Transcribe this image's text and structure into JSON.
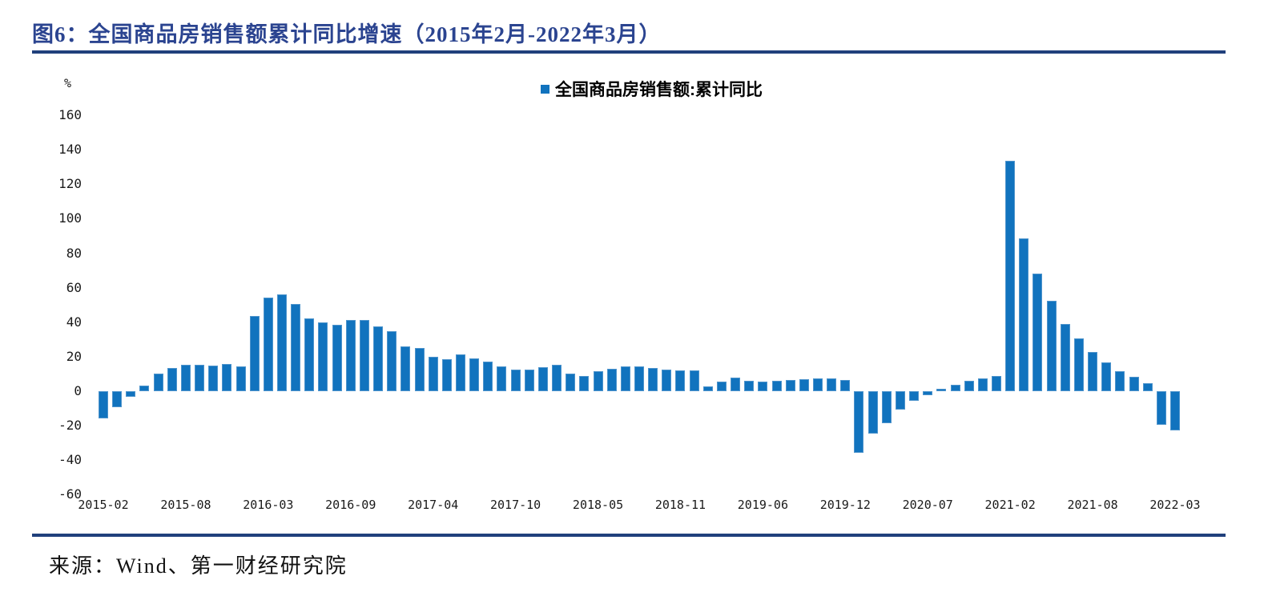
{
  "title": "图6：全国商品房销售额累计同比增速（2015年2月-2022年3月）",
  "source": "来源：Wind、第一财经研究院",
  "colors": {
    "bar": "#1173BE",
    "title": "#2B4490",
    "rule": "#20407C",
    "tick": "#1a1a1a",
    "text": "#111111"
  },
  "chart_data": {
    "type": "bar",
    "title": "图6：全国商品房销售额累计同比增速（2015年2月-2022年3月）",
    "legend": "全国商品房销售额:累计同比",
    "legend_position": "top-center",
    "ylabel": "%",
    "ylim": [
      -60,
      160
    ],
    "ytick_step": 20,
    "y_ticks": [
      160,
      140,
      120,
      100,
      80,
      60,
      40,
      20,
      0,
      -20,
      -40,
      -60
    ],
    "grid": false,
    "x": [
      "2015-02",
      "2015-03",
      "2015-04",
      "2015-05",
      "2015-06",
      "2015-07",
      "2015-08",
      "2015-09",
      "2015-10",
      "2015-11",
      "2015-12",
      "2016-02",
      "2016-03",
      "2016-04",
      "2016-05",
      "2016-06",
      "2016-07",
      "2016-08",
      "2016-09",
      "2016-10",
      "2016-11",
      "2016-12",
      "2017-02",
      "2017-03",
      "2017-04",
      "2017-05",
      "2017-06",
      "2017-07",
      "2017-08",
      "2017-09",
      "2017-10",
      "2017-11",
      "2017-12",
      "2018-02",
      "2018-03",
      "2018-04",
      "2018-05",
      "2018-06",
      "2018-07",
      "2018-08",
      "2018-09",
      "2018-10",
      "2018-11",
      "2018-12",
      "2019-02",
      "2019-03",
      "2019-04",
      "2019-05",
      "2019-06",
      "2019-07",
      "2019-08",
      "2019-09",
      "2019-10",
      "2019-11",
      "2019-12",
      "2020-02",
      "2020-03",
      "2020-04",
      "2020-05",
      "2020-06",
      "2020-07",
      "2020-08",
      "2020-09",
      "2020-10",
      "2020-11",
      "2020-12",
      "2021-02",
      "2021-03",
      "2021-04",
      "2021-05",
      "2021-06",
      "2021-07",
      "2021-08",
      "2021-09",
      "2021-10",
      "2021-11",
      "2021-12",
      "2022-02",
      "2022-03"
    ],
    "values": [
      -15.8,
      -9.3,
      -3.1,
      3.1,
      10.0,
      13.4,
      15.3,
      15.3,
      14.9,
      15.6,
      14.4,
      43.6,
      54.1,
      55.9,
      50.7,
      42.1,
      39.8,
      38.7,
      41.3,
      41.2,
      37.5,
      34.8,
      26.0,
      25.1,
      20.1,
      18.6,
      21.5,
      18.9,
      17.2,
      14.6,
      12.6,
      12.7,
      13.7,
      15.3,
      10.4,
      9.0,
      11.8,
      13.2,
      14.4,
      14.5,
      13.3,
      12.5,
      12.1,
      12.2,
      2.8,
      5.6,
      8.1,
      6.1,
      5.6,
      6.2,
      6.7,
      7.1,
      7.3,
      7.3,
      6.5,
      -35.9,
      -24.7,
      -18.6,
      -10.6,
      -5.4,
      -2.1,
      1.6,
      3.7,
      5.8,
      7.2,
      8.7,
      133.4,
      88.5,
      68.2,
      52.4,
      38.9,
      30.7,
      22.8,
      16.6,
      11.8,
      8.5,
      4.8,
      -19.3,
      -22.7
    ],
    "x_tick_labels": [
      "2015-02",
      "2015-08",
      "2016-03",
      "2016-09",
      "2017-04",
      "2017-10",
      "2018-05",
      "2018-11",
      "2019-06",
      "2019-12",
      "2020-07",
      "2021-02",
      "2021-08",
      "2022-03"
    ],
    "x_tick_indices": [
      0,
      6,
      12,
      18,
      24,
      30,
      36,
      42,
      48,
      54,
      60,
      66,
      72,
      78
    ]
  }
}
